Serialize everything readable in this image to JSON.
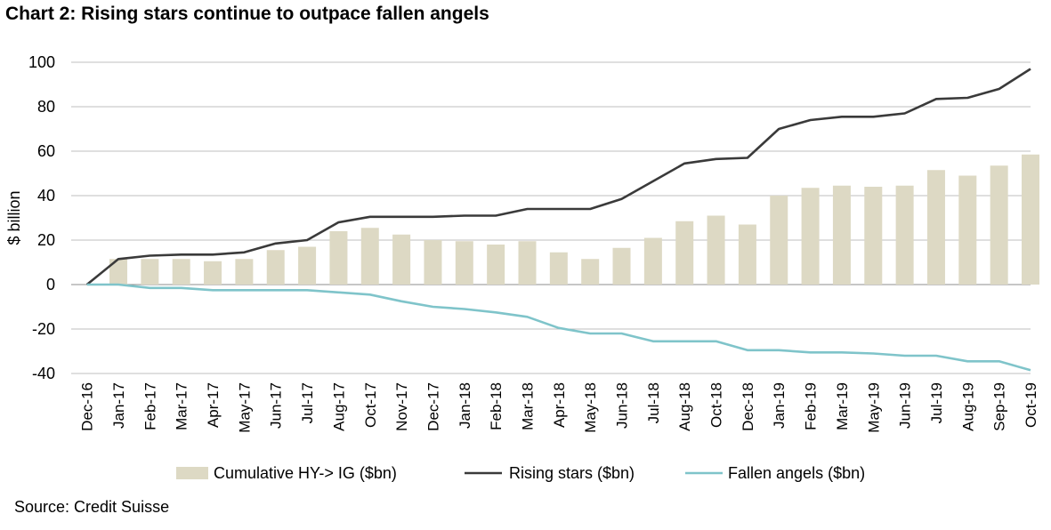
{
  "header": {
    "title": "Chart 2: Rising stars continue to outpace fallen angels"
  },
  "footer": {
    "source": "Source: Credit Suisse"
  },
  "chart_data": {
    "type": "bar",
    "title": "Chart 2: Rising stars continue to outpace fallen angels",
    "ylabel": "$ billion",
    "xlabel": "",
    "ylim": [
      -40,
      100
    ],
    "yticks": [
      -40,
      -20,
      0,
      20,
      40,
      60,
      80,
      100
    ],
    "grid": true,
    "legend_position": "bottom",
    "categories": [
      "Dec-16",
      "Jan-17",
      "Feb-17",
      "Mar-17",
      "Apr-17",
      "May-17",
      "Jun-17",
      "Jul-17",
      "Aug-17",
      "Oct-17",
      "Nov-17",
      "Dec-17",
      "Jan-18",
      "Feb-18",
      "Mar-18",
      "Apr-18",
      "May-18",
      "Jun-18",
      "Jul-18",
      "Aug-18",
      "Oct-18",
      "Dec-18",
      "Jan-19",
      "Feb-19",
      "Mar-19",
      "May-19",
      "Jun-19",
      "Jul-19",
      "Aug-19",
      "Sep-19",
      "Oct-19"
    ],
    "series": [
      {
        "name": "Cumulative HY-> IG ($bn)",
        "type": "bar",
        "color": "#ddd9c4",
        "values": [
          0,
          11.5,
          11.5,
          11.5,
          10.5,
          11.5,
          15.5,
          17,
          24,
          25.5,
          22.5,
          20,
          19.5,
          18,
          19.5,
          14.5,
          11.5,
          16.5,
          21,
          28.5,
          31,
          27,
          40,
          43.5,
          44.5,
          44,
          44.5,
          51.5,
          49,
          53.5,
          58.5
        ]
      },
      {
        "name": "Rising stars ($bn)",
        "type": "line",
        "color": "#3a3a3a",
        "values": [
          0,
          11.5,
          13,
          13.5,
          13.5,
          14.5,
          18.5,
          20,
          28,
          30.5,
          30.5,
          30.5,
          31,
          31,
          34,
          34,
          34,
          38.5,
          46.5,
          54.5,
          56.5,
          57,
          70,
          74,
          75.5,
          75.5,
          77,
          83.5,
          84,
          88,
          97
        ]
      },
      {
        "name": "Fallen angels ($bn)",
        "type": "line",
        "color": "#7fc4ca",
        "values": [
          0,
          0,
          -1.5,
          -1.5,
          -2.5,
          -2.5,
          -2.5,
          -2.5,
          -3.5,
          -4.5,
          -7.5,
          -10,
          -11,
          -12.5,
          -14.5,
          -19.5,
          -22,
          -22,
          -25.5,
          -25.5,
          -25.5,
          -29.5,
          -29.5,
          -30.5,
          -30.5,
          -31,
          -32,
          -32,
          -34.5,
          -34.5,
          -38.5
        ]
      }
    ]
  }
}
